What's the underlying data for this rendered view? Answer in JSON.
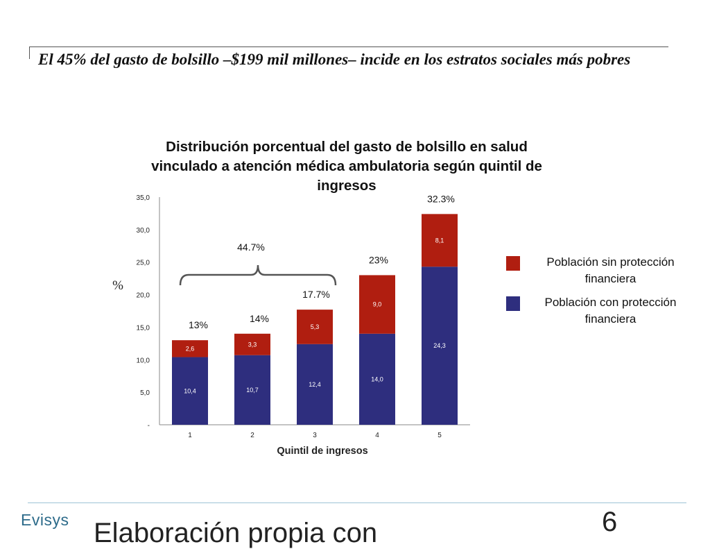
{
  "headline": "El 45% del gasto de bolsillo –$199 mil millones– incide en los estratos sociales más pobres",
  "chart_data": {
    "type": "bar",
    "stacked": true,
    "title": "Distribución porcentual del gasto de bolsillo en salud vinculado a atención médica ambulatoria según quintil de ingresos",
    "xlabel": "Quintil de ingresos",
    "ylabel": "%",
    "categories": [
      "1",
      "2",
      "3",
      "4",
      "5"
    ],
    "ylim": [
      0,
      35
    ],
    "yticks": [
      "-",
      "5,0",
      "10,0",
      "15,0",
      "20,0",
      "25,0",
      "30,0",
      "35,0"
    ],
    "series": [
      {
        "name": "Población con protección financiera",
        "color": "#2e2e7e",
        "values": [
          10.4,
          10.7,
          12.4,
          14.0,
          24.3
        ],
        "labels": [
          "10,4",
          "10,7",
          "12,4",
          "14,0",
          "24,3"
        ]
      },
      {
        "name": "Población sin protección financiera",
        "color": "#b01e10",
        "values": [
          2.6,
          3.3,
          5.3,
          9.0,
          8.1
        ],
        "labels": [
          "2,6",
          "3,3",
          "5,3",
          "9,0",
          "8,1"
        ]
      }
    ],
    "totals_labels": [
      "13%",
      "14%",
      "17.7%",
      "23%",
      "32.3%"
    ],
    "bracket_label": "44.7%",
    "legend_position": "right"
  },
  "footer": {
    "logo": "Evisys",
    "note": "Elaboración propia con",
    "page": "6"
  }
}
